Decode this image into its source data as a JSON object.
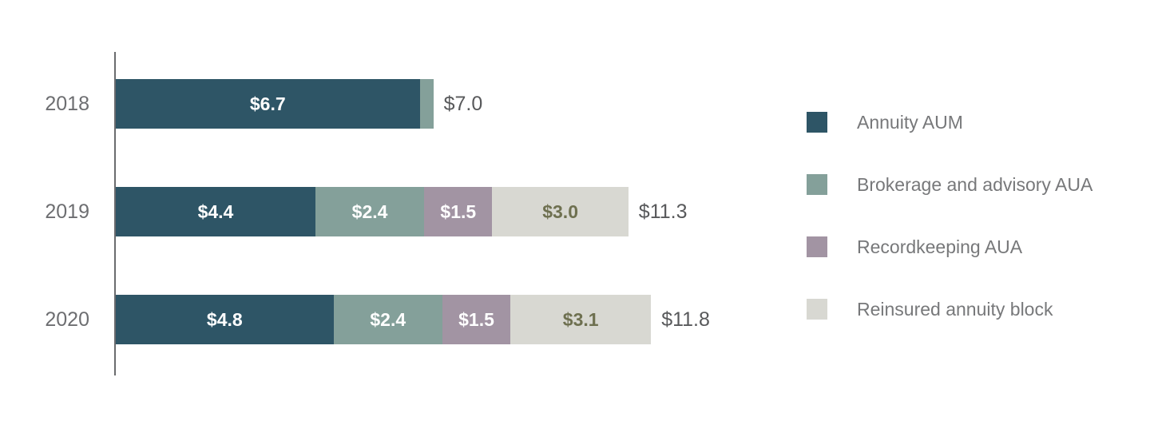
{
  "chart_data": {
    "type": "bar",
    "orientation": "horizontal",
    "stacked": true,
    "grid": false,
    "legend_position": "right",
    "categories": [
      "2018",
      "2019",
      "2020"
    ],
    "series": [
      {
        "name": "Annuity AUM",
        "color": "#2E5566",
        "values": [
          6.7,
          4.4,
          4.8
        ]
      },
      {
        "name": "Brokerage and advisory AUA",
        "color": "#84A09A",
        "values": [
          0.3,
          2.4,
          2.4
        ]
      },
      {
        "name": "Recordkeeping AUA",
        "color": "#A294A3",
        "values": [
          0,
          1.5,
          1.5
        ]
      },
      {
        "name": "Reinsured annuity block",
        "color": "#D8D8D2",
        "values": [
          0,
          3.0,
          3.1
        ]
      }
    ],
    "totals": [
      7.0,
      11.3,
      11.8
    ],
    "rows": [
      {
        "year": "2018",
        "total_label": "$7.0",
        "segments": [
          {
            "series_index": 0,
            "value": 6.7,
            "label": "$6.7",
            "label_color": "#FFFFFF"
          },
          {
            "series_index": 1,
            "value": 0.3,
            "label": "",
            "label_color": "#FFFFFF"
          }
        ]
      },
      {
        "year": "2019",
        "total_label": "$11.3",
        "segments": [
          {
            "series_index": 0,
            "value": 4.4,
            "label": "$4.4",
            "label_color": "#FFFFFF"
          },
          {
            "series_index": 1,
            "value": 2.4,
            "label": "$2.4",
            "label_color": "#FFFFFF"
          },
          {
            "series_index": 2,
            "value": 1.5,
            "label": "$1.5",
            "label_color": "#FFFFFF"
          },
          {
            "series_index": 3,
            "value": 3.0,
            "label": "$3.0",
            "label_color": "#6E7050"
          }
        ]
      },
      {
        "year": "2020",
        "total_label": "$11.8",
        "segments": [
          {
            "series_index": 0,
            "value": 4.8,
            "label": "$4.8",
            "label_color": "#FFFFFF"
          },
          {
            "series_index": 1,
            "value": 2.4,
            "label": "$2.4",
            "label_color": "#FFFFFF"
          },
          {
            "series_index": 2,
            "value": 1.5,
            "label": "$1.5",
            "label_color": "#FFFFFF"
          },
          {
            "series_index": 3,
            "value": 3.1,
            "label": "$3.1",
            "label_color": "#6E7050"
          }
        ]
      }
    ]
  },
  "legend": {
    "items": [
      {
        "label": "Annuity AUM",
        "color": "#2E5566"
      },
      {
        "label": "Brokerage and advisory AUA",
        "color": "#84A09A"
      },
      {
        "label": "Recordkeeping AUA",
        "color": "#A294A3"
      },
      {
        "label": "Reinsured annuity block",
        "color": "#D8D8D2"
      }
    ]
  },
  "colors": {
    "axis": "#6A6B6E",
    "category_text": "#6D6E71",
    "total_text": "#58595B",
    "legend_text": "#77787A",
    "background": "#FFFFFF"
  }
}
